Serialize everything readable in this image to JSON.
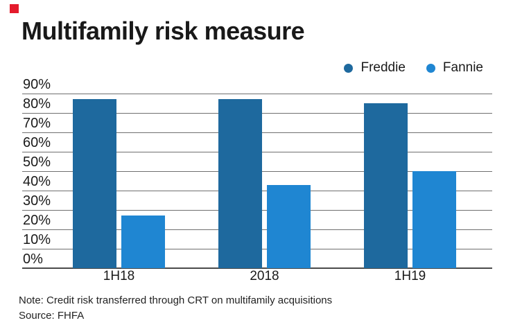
{
  "brand": {
    "mark_color": "#E41B2C"
  },
  "title": "Multifamily risk measure",
  "legend": [
    {
      "label": "Freddie",
      "color": "#1E699E"
    },
    {
      "label": "Fannie",
      "color": "#1F86D2"
    }
  ],
  "chart_data": {
    "type": "bar",
    "title": "Multifamily risk measure",
    "categories": [
      "1H18",
      "2018",
      "1H19"
    ],
    "series": [
      {
        "name": "Freddie",
        "color": "#1E699E",
        "values": [
          87,
          87,
          85
        ]
      },
      {
        "name": "Fannie",
        "color": "#1F86D2",
        "values": [
          27,
          43,
          50
        ]
      }
    ],
    "unit": "%",
    "y_ticks": [
      "90%",
      "80%",
      "70%",
      "60%",
      "50%",
      "40%",
      "30%",
      "20%",
      "10%",
      "0%"
    ],
    "ylim": [
      0,
      90
    ],
    "grid": true,
    "legend_position": "top-right"
  },
  "footnote": {
    "note": "Note: Credit risk transferred through CRT on multifamily acquisitions",
    "source": "Source: FHFA"
  }
}
